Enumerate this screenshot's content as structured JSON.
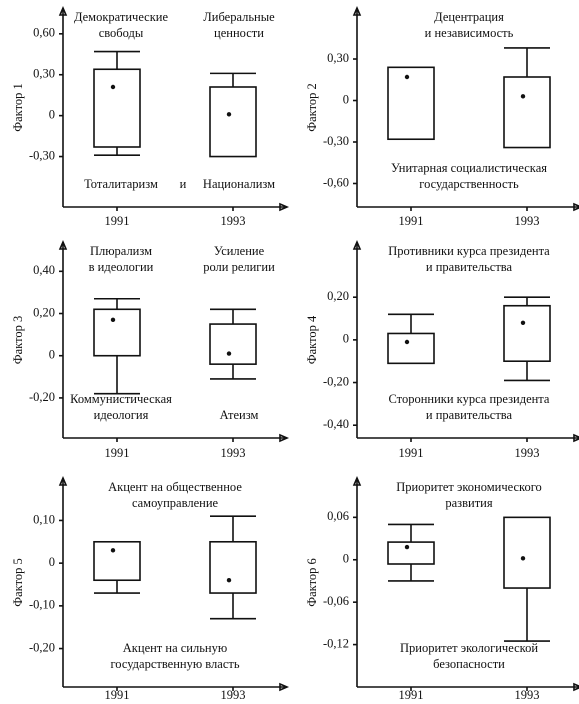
{
  "chart_data": [
    {
      "type": "box",
      "ylabel": "Фактор 1",
      "categories": [
        "1991",
        "1993"
      ],
      "ylim": [
        -0.67,
        0.76
      ],
      "yticks": [
        {
          "value": 0.6,
          "label": "0,60"
        },
        {
          "value": 0.3,
          "label": "0,30"
        },
        0,
        {
          "value": -0.3,
          "label": "-0,30"
        }
      ],
      "boxes": [
        {
          "high": 0.47,
          "upper": 0.34,
          "lower": -0.23,
          "low": -0.29,
          "point": 0.21
        },
        {
          "high": 0.31,
          "upper": 0.21,
          "lower": -0.3,
          "point": 0.01
        }
      ],
      "top_left": [
        "Демократические",
        "свободы"
      ],
      "top_right": [
        "Либеральные",
        "ценности"
      ],
      "bottom_left": [
        "Тоталитаризм"
      ],
      "bottom_middle": [
        "и"
      ],
      "bottom_right": [
        "Национализм"
      ]
    },
    {
      "type": "box",
      "ylabel": "Фактор 2",
      "categories": [
        "1991",
        "1993"
      ],
      "ylim": [
        -0.77,
        0.64
      ],
      "yticks": [
        {
          "value": 0.3,
          "label": "0,30"
        },
        0,
        {
          "value": -0.3,
          "label": "-0,30"
        },
        {
          "value": -0.6,
          "label": "-0,60"
        }
      ],
      "boxes": [
        {
          "upper": 0.24,
          "lower": -0.28,
          "point": 0.17
        },
        {
          "high": 0.38,
          "upper": 0.17,
          "lower": -0.34,
          "point": 0.03
        }
      ],
      "top": [
        "Децентрация",
        "и независимость"
      ],
      "bottom": [
        "Унитарная социалистическая",
        "государственность"
      ]
    },
    {
      "type": "box",
      "ylabel": "Фактор 3",
      "categories": [
        "1991",
        "1993"
      ],
      "ylim": [
        -0.39,
        0.52
      ],
      "yticks": [
        {
          "value": 0.4,
          "label": "0,40"
        },
        {
          "value": 0.2,
          "label": "0,20"
        },
        0,
        {
          "value": -0.2,
          "label": "-0,20"
        }
      ],
      "boxes": [
        {
          "high": 0.27,
          "upper": 0.22,
          "lower": 0.0,
          "low": -0.18,
          "point": 0.17
        },
        {
          "high": 0.22,
          "upper": 0.15,
          "lower": -0.04,
          "low": -0.11,
          "point": 0.01
        }
      ],
      "top_left": [
        "Плюрализм",
        "в идеологии"
      ],
      "top_right": [
        "Усиление",
        "роли религии"
      ],
      "bottom_left": [
        "Коммунистическая",
        "идеология"
      ],
      "bottom_right": [
        "Атеизм"
      ]
    },
    {
      "type": "box",
      "ylabel": "Фактор 4",
      "categories": [
        "1991",
        "1993"
      ],
      "ylim": [
        -0.46,
        0.44
      ],
      "yticks": [
        {
          "value": 0.2,
          "label": "0,20"
        },
        0,
        {
          "value": -0.2,
          "label": "-0,20"
        },
        {
          "value": -0.4,
          "label": "-0,40"
        }
      ],
      "boxes": [
        {
          "high": 0.12,
          "upper": 0.03,
          "lower": -0.11,
          "point": -0.01
        },
        {
          "high": 0.2,
          "upper": 0.16,
          "lower": -0.1,
          "low": -0.19,
          "point": 0.08
        }
      ],
      "top": [
        "Противники курса президента",
        "и правительства"
      ],
      "bottom": [
        "Сторонники курса президента",
        "и правительства"
      ]
    },
    {
      "type": "box",
      "ylabel": "Фактор 5",
      "categories": [
        "1991",
        "1993"
      ],
      "ylim": [
        -0.29,
        0.19
      ],
      "yticks": [
        {
          "value": 0.1,
          "label": "0,10"
        },
        0,
        {
          "value": -0.1,
          "label": "-0,10"
        },
        {
          "value": -0.2,
          "label": "-0,20"
        }
      ],
      "boxes": [
        {
          "upper": 0.05,
          "lower": -0.04,
          "low": -0.07,
          "point": 0.03
        },
        {
          "high": 0.11,
          "upper": 0.05,
          "lower": -0.07,
          "low": -0.13,
          "point": -0.04
        }
      ],
      "top": [
        "Акцент на общественное",
        "самоуправление"
      ],
      "bottom": [
        "Акцент на сильную",
        "государственную власть"
      ]
    },
    {
      "type": "box",
      "ylabel": "Фактор 6",
      "categories": [
        "1991",
        "1993"
      ],
      "ylim": [
        -0.18,
        0.11
      ],
      "yticks": [
        {
          "value": 0.06,
          "label": "0,06"
        },
        0,
        {
          "value": -0.06,
          "label": "-0,06"
        },
        {
          "value": -0.12,
          "label": "-0,12"
        }
      ],
      "boxes": [
        {
          "high": 0.05,
          "upper": 0.025,
          "lower": -0.006,
          "low": -0.03,
          "point": 0.018
        },
        {
          "upper": 0.06,
          "lower": -0.04,
          "low": -0.115,
          "point": 0.002
        }
      ],
      "top": [
        "Приоритет экономического",
        "развития"
      ],
      "bottom": [
        "Приоритет экологической",
        "безопасности"
      ]
    }
  ]
}
